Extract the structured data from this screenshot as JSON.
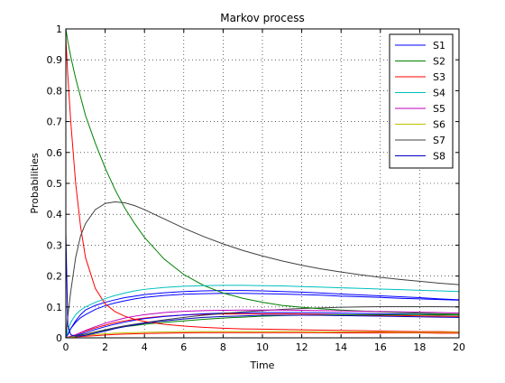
{
  "chart_data": {
    "type": "line",
    "title": "Markov process",
    "xlabel": "Time",
    "ylabel": "Probabilities",
    "xlim": [
      0,
      20
    ],
    "ylim": [
      0,
      1
    ],
    "xticks": [
      0,
      2,
      4,
      6,
      8,
      10,
      12,
      14,
      16,
      18,
      20
    ],
    "yticks": [
      0,
      0.1,
      0.2,
      0.3,
      0.4,
      0.5,
      0.6,
      0.7,
      0.8,
      0.9,
      1
    ],
    "grid": true,
    "legend_position": "top-right",
    "x": [
      0,
      0.1,
      0.25,
      0.5,
      0.75,
      1,
      1.5,
      2,
      2.5,
      3,
      3.5,
      4,
      5,
      6,
      7,
      8,
      9,
      10,
      11,
      12,
      13,
      14,
      15,
      16,
      17,
      18,
      19,
      20
    ],
    "series": [
      {
        "name": "S1",
        "color": "#0000ff",
        "values": [
          0,
          0.01,
          0.03,
          0.055,
          0.075,
          0.09,
          0.105,
          0.115,
          0.123,
          0.13,
          0.135,
          0.14,
          0.146,
          0.15,
          0.152,
          0.153,
          0.153,
          0.152,
          0.15,
          0.148,
          0.145,
          0.142,
          0.139,
          0.136,
          0.133,
          0.13,
          0.126,
          0.123
        ]
      },
      {
        "name": "S2",
        "color": "#008000",
        "values": [
          1,
          0.96,
          0.91,
          0.84,
          0.78,
          0.72,
          0.63,
          0.55,
          0.48,
          0.42,
          0.37,
          0.325,
          0.255,
          0.205,
          0.17,
          0.145,
          0.128,
          0.115,
          0.105,
          0.099,
          0.094,
          0.09,
          0.087,
          0.084,
          0.082,
          0.08,
          0.078,
          0.076
        ]
      },
      {
        "name": "S3",
        "color": "#ff0000",
        "values": [
          0.97,
          0.85,
          0.7,
          0.5,
          0.36,
          0.26,
          0.16,
          0.11,
          0.085,
          0.07,
          0.06,
          0.053,
          0.044,
          0.038,
          0.034,
          0.031,
          0.029,
          0.028,
          0.027,
          0.026,
          0.025,
          0.024,
          0.023,
          0.022,
          0.021,
          0.02,
          0.02,
          0.019
        ]
      },
      {
        "name": "S4",
        "color": "#00bfbf",
        "values": [
          0,
          0.025,
          0.05,
          0.075,
          0.09,
          0.1,
          0.115,
          0.127,
          0.137,
          0.145,
          0.152,
          0.157,
          0.163,
          0.167,
          0.169,
          0.17,
          0.17,
          0.169,
          0.168,
          0.166,
          0.164,
          0.162,
          0.16,
          0.158,
          0.156,
          0.154,
          0.152,
          0.15
        ]
      },
      {
        "name": "S5",
        "color": "#bf00bf",
        "values": [
          0,
          0.002,
          0.005,
          0.01,
          0.017,
          0.024,
          0.036,
          0.047,
          0.056,
          0.064,
          0.07,
          0.075,
          0.082,
          0.086,
          0.088,
          0.089,
          0.09,
          0.09,
          0.09,
          0.089,
          0.088,
          0.087,
          0.086,
          0.085,
          0.084,
          0.083,
          0.082,
          0.08
        ]
      },
      {
        "name": "S6",
        "color": "#bfbf00",
        "values": [
          0,
          0.001,
          0.002,
          0.004,
          0.006,
          0.008,
          0.011,
          0.013,
          0.015,
          0.016,
          0.017,
          0.018,
          0.019,
          0.02,
          0.02,
          0.02,
          0.02,
          0.02,
          0.02,
          0.02,
          0.019,
          0.019,
          0.019,
          0.019,
          0.018,
          0.018,
          0.018,
          0.018
        ]
      },
      {
        "name": "S7",
        "color": "#404040",
        "values": [
          0,
          0.07,
          0.15,
          0.26,
          0.33,
          0.37,
          0.415,
          0.435,
          0.44,
          0.437,
          0.428,
          0.415,
          0.385,
          0.355,
          0.328,
          0.304,
          0.283,
          0.265,
          0.249,
          0.235,
          0.223,
          0.213,
          0.204,
          0.196,
          0.189,
          0.183,
          0.177,
          0.172
        ]
      },
      {
        "name": "S8",
        "color": "#0000bf",
        "values": [
          0.34,
          0.04,
          0.01,
          0.005,
          0.006,
          0.008,
          0.015,
          0.022,
          0.03,
          0.036,
          0.042,
          0.047,
          0.055,
          0.061,
          0.066,
          0.069,
          0.071,
          0.073,
          0.073,
          0.073,
          0.073,
          0.072,
          0.071,
          0.07,
          0.069,
          0.068,
          0.067,
          0.066
        ]
      }
    ],
    "extra_lines": [
      {
        "color": "#ff0000",
        "values": [
          0,
          0.001,
          0.002,
          0.003,
          0.004,
          0.005,
          0.007,
          0.009,
          0.011,
          0.012,
          0.013,
          0.014,
          0.015,
          0.016,
          0.017,
          0.017,
          0.017,
          0.017,
          0.017,
          0.017,
          0.017,
          0.016,
          0.016,
          0.016,
          0.016,
          0.016,
          0.015,
          0.015
        ]
      },
      {
        "color": "#ff0000",
        "values": [
          0,
          0.002,
          0.005,
          0.01,
          0.016,
          0.022,
          0.032,
          0.041,
          0.049,
          0.055,
          0.06,
          0.064,
          0.07,
          0.074,
          0.076,
          0.077,
          0.078,
          0.078,
          0.078,
          0.077,
          0.076,
          0.075,
          0.074,
          0.073,
          0.072,
          0.071,
          0.07,
          0.069
        ]
      },
      {
        "color": "#0000ff",
        "values": [
          0,
          0.001,
          0.003,
          0.007,
          0.012,
          0.017,
          0.027,
          0.036,
          0.044,
          0.051,
          0.057,
          0.062,
          0.069,
          0.074,
          0.078,
          0.08,
          0.081,
          0.082,
          0.082,
          0.082,
          0.081,
          0.08,
          0.079,
          0.078,
          0.077,
          0.076,
          0.075,
          0.074
        ]
      },
      {
        "color": "#008000",
        "values": [
          0,
          0.001,
          0.003,
          0.006,
          0.009,
          0.012,
          0.019,
          0.025,
          0.031,
          0.036,
          0.04,
          0.044,
          0.05,
          0.055,
          0.06,
          0.064,
          0.067,
          0.07,
          0.072,
          0.073,
          0.074,
          0.075,
          0.075,
          0.075,
          0.075,
          0.075,
          0.074,
          0.074
        ]
      },
      {
        "color": "#404040",
        "values": [
          0,
          0.001,
          0.002,
          0.005,
          0.008,
          0.012,
          0.019,
          0.026,
          0.033,
          0.039,
          0.044,
          0.049,
          0.058,
          0.066,
          0.073,
          0.079,
          0.084,
          0.088,
          0.092,
          0.095,
          0.097,
          0.099,
          0.1,
          0.101,
          0.101,
          0.101,
          0.101,
          0.1
        ]
      },
      {
        "color": "#0000ff",
        "values": [
          0,
          0.012,
          0.03,
          0.05,
          0.065,
          0.075,
          0.092,
          0.104,
          0.113,
          0.12,
          0.126,
          0.131,
          0.137,
          0.141,
          0.143,
          0.144,
          0.144,
          0.143,
          0.142,
          0.14,
          0.138,
          0.135,
          0.133,
          0.131,
          0.128,
          0.126,
          0.124,
          0.122
        ]
      }
    ]
  }
}
